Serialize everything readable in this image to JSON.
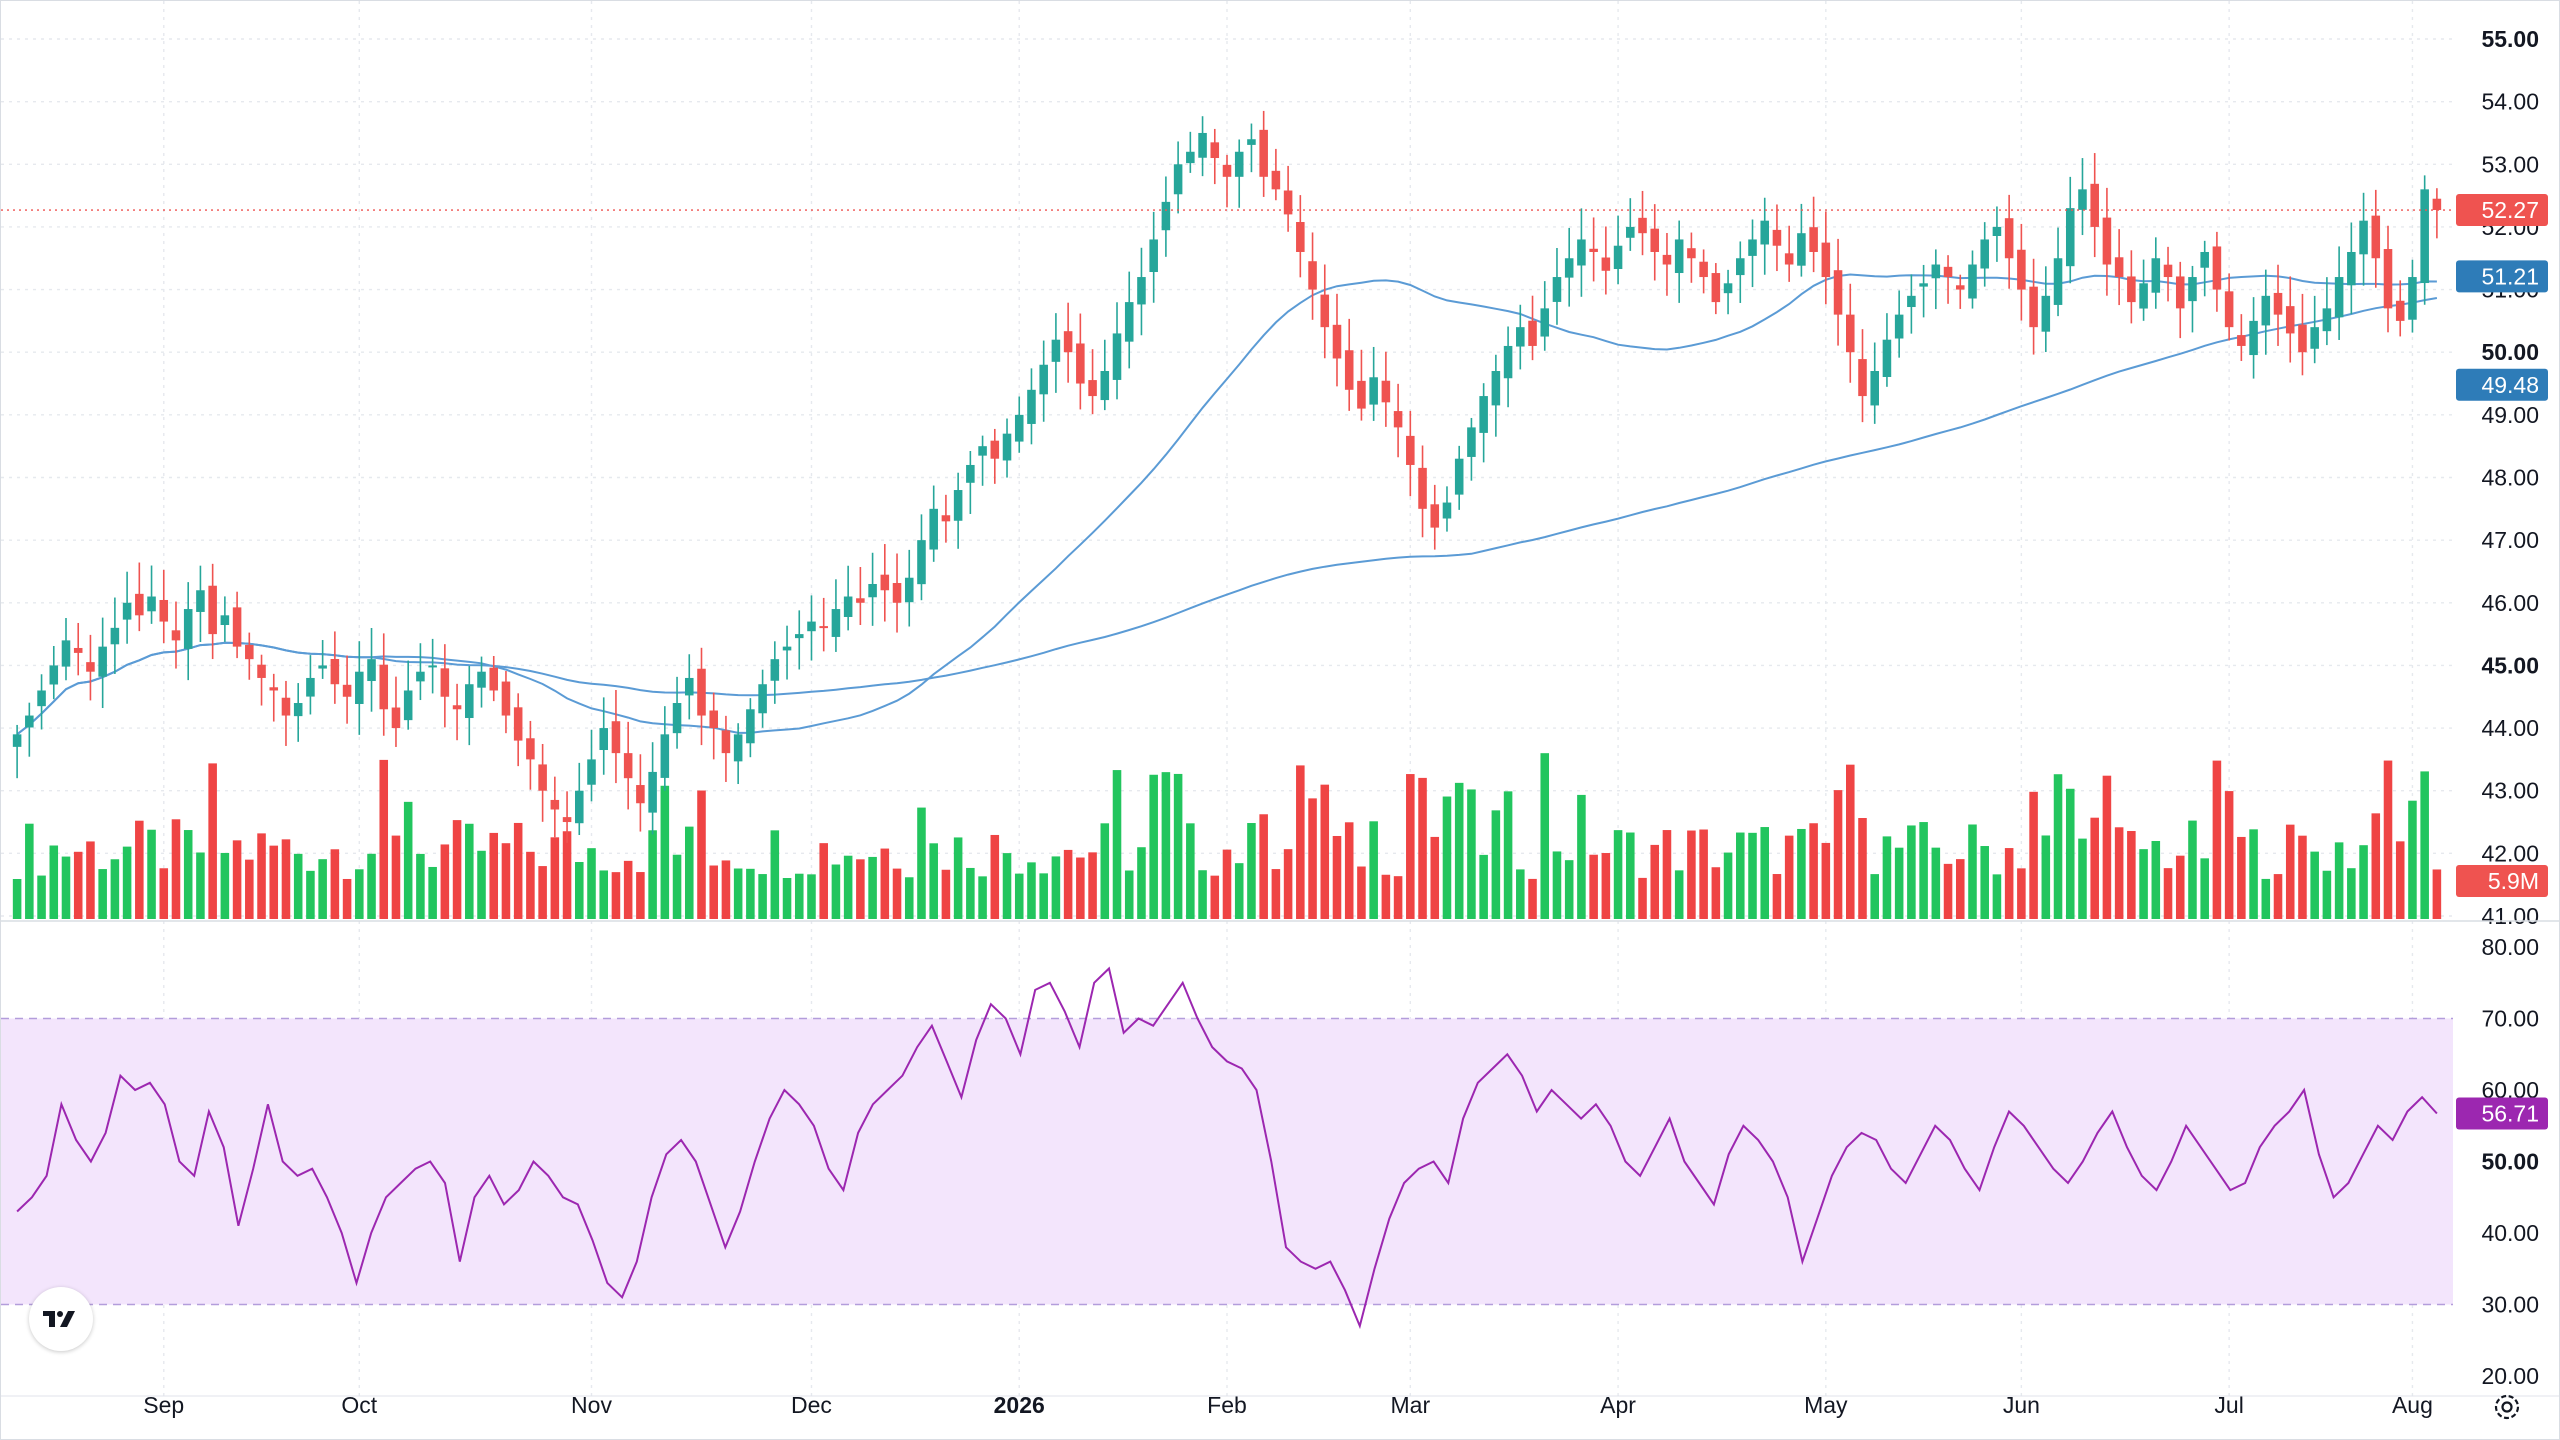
{
  "chart_data": {
    "type": "candlestick",
    "price_axis": {
      "ticks": [
        "55.00",
        "54.00",
        "53.00",
        "52.00",
        "51.00",
        "50.00",
        "49.00",
        "48.00",
        "47.00",
        "46.00",
        "45.00",
        "44.00",
        "43.00",
        "42.00",
        "41.00"
      ],
      "bold_ticks": [
        "55.00",
        "50.00",
        "45.00"
      ],
      "range": [
        40.8,
        55.6
      ]
    },
    "time_axis": {
      "labels": [
        "Sep",
        "Oct",
        "Nov",
        "Dec",
        "2026",
        "Feb",
        "Mar",
        "Apr",
        "May",
        "Jun",
        "Jul",
        "Aug"
      ],
      "bold_labels": [
        "2026"
      ]
    },
    "colors": {
      "up": "#26a69a",
      "down": "#ef5350",
      "volume_up": "#22c55e",
      "volume_down": "#ef4444",
      "ma": "#5b9bd5",
      "rsi": "#9c27b0",
      "rsi_band": "#f3e5fc"
    },
    "last_price": "52.27",
    "ma50_value": "51.21",
    "ma200_value": "49.48",
    "volume_last": "5.9M",
    "rsi": {
      "ticks": [
        "80.00",
        "70.00",
        "60.00",
        "50.00",
        "40.00",
        "30.00",
        "20.00"
      ],
      "bold_ticks": [
        "50.00"
      ],
      "upper": 70,
      "lower": 30,
      "value": "56.71"
    },
    "closes": [
      43.9,
      44.2,
      44.6,
      45.0,
      45.4,
      45.2,
      44.9,
      45.3,
      45.6,
      46.0,
      45.8,
      46.1,
      45.7,
      45.4,
      45.9,
      46.2,
      45.5,
      45.8,
      45.3,
      45.1,
      44.8,
      44.6,
      44.2,
      44.4,
      44.8,
      45.0,
      44.7,
      44.5,
      44.9,
      45.1,
      44.3,
      44.0,
      44.6,
      44.9,
      45.0,
      44.5,
      44.3,
      44.7,
      44.9,
      44.6,
      44.2,
      43.8,
      43.5,
      43.0,
      42.7,
      42.5,
      43.0,
      43.5,
      44.0,
      43.6,
      43.2,
      42.8,
      43.3,
      43.9,
      44.4,
      44.8,
      44.2,
      44.0,
      43.6,
      43.9,
      44.3,
      44.7,
      45.1,
      45.3,
      45.5,
      45.7,
      45.6,
      45.9,
      46.1,
      46.0,
      46.3,
      46.2,
      46.0,
      46.4,
      47.0,
      47.5,
      47.3,
      47.8,
      48.2,
      48.5,
      48.3,
      48.7,
      49.0,
      49.4,
      49.8,
      50.2,
      50.0,
      49.5,
      49.3,
      49.7,
      50.3,
      50.8,
      51.2,
      51.8,
      52.4,
      53.0,
      53.2,
      53.5,
      53.1,
      52.8,
      53.2,
      53.4,
      52.8,
      52.6,
      52.2,
      51.6,
      51.0,
      50.4,
      49.9,
      49.4,
      49.1,
      49.6,
      49.2,
      48.8,
      48.2,
      47.5,
      47.2,
      47.6,
      48.3,
      48.8,
      49.3,
      49.7,
      50.1,
      50.4,
      50.1,
      50.7,
      51.2,
      51.5,
      51.8,
      51.6,
      51.3,
      51.7,
      52.0,
      51.9,
      51.6,
      51.4,
      51.8,
      51.5,
      51.2,
      50.8,
      51.1,
      51.5,
      51.8,
      52.1,
      51.7,
      51.4,
      51.9,
      51.6,
      51.2,
      50.6,
      50.0,
      49.3,
      49.7,
      50.2,
      50.6,
      50.9,
      51.1,
      51.4,
      51.2,
      51.0,
      51.4,
      51.8,
      52.0,
      51.5,
      51.0,
      50.4,
      50.9,
      51.5,
      52.3,
      52.6,
      52.0,
      51.4,
      51.2,
      50.8,
      51.1,
      51.5,
      51.2,
      50.7,
      51.2,
      51.6,
      51.0,
      50.4,
      50.1,
      50.5,
      50.9,
      50.6,
      50.3,
      50.0,
      50.4,
      50.7,
      51.2,
      51.6,
      52.1,
      51.5,
      50.7,
      50.5,
      51.2,
      52.6,
      52.27
    ],
    "rsi_values": [
      43,
      45,
      48,
      58,
      53,
      50,
      54,
      62,
      60,
      61,
      58,
      50,
      48,
      57,
      52,
      41,
      49,
      58,
      50,
      48,
      49,
      45,
      40,
      33,
      40,
      45,
      47,
      49,
      50,
      47,
      36,
      45,
      48,
      44,
      46,
      50,
      48,
      45,
      44,
      39,
      33,
      31,
      36,
      45,
      51,
      53,
      50,
      44,
      38,
      43,
      50,
      56,
      60,
      58,
      55,
      49,
      46,
      54,
      58,
      60,
      62,
      66,
      69,
      64,
      59,
      67,
      72,
      70,
      65,
      74,
      75,
      71,
      66,
      75,
      77,
      68,
      70,
      69,
      72,
      75,
      70,
      66,
      64,
      63,
      60,
      50,
      38,
      36,
      35,
      36,
      32,
      27,
      35,
      42,
      47,
      49,
      50,
      47,
      56,
      61,
      63,
      65,
      62,
      57,
      60,
      58,
      56,
      58,
      55,
      50,
      48,
      52,
      56,
      50,
      47,
      44,
      51,
      55,
      53,
      50,
      45,
      36,
      42,
      48,
      52,
      54,
      53,
      49,
      47,
      51,
      55,
      53,
      49,
      46,
      52,
      57,
      55,
      52,
      49,
      47,
      50,
      54,
      57,
      52,
      48,
      46,
      50,
      55,
      52,
      49,
      46,
      47,
      52,
      55,
      57,
      60,
      51,
      45,
      47,
      51,
      55,
      53,
      57,
      59,
      56.71
    ]
  },
  "branding": {
    "logo_text": "TV"
  }
}
